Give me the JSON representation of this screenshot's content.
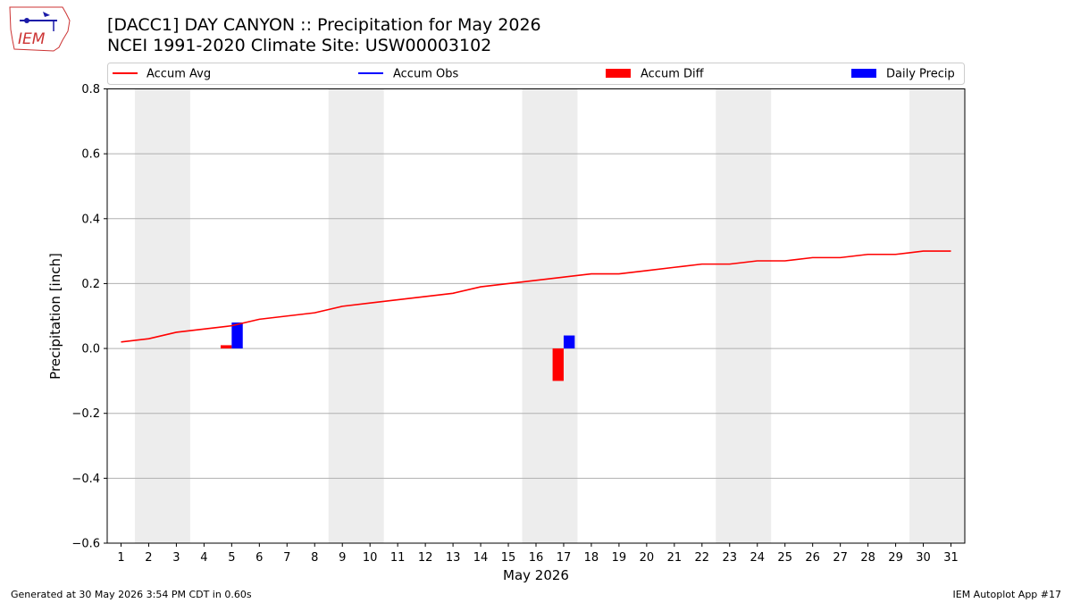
{
  "header": {
    "title_line1": "[DACC1] DAY CANYON :: Precipitation for May 2026",
    "title_line2": "NCEI 1991-2020 Climate Site: USW00003102",
    "logo_text": "IEM"
  },
  "footer": {
    "generated": "Generated at 30 May 2026 3:54 PM CDT in 0.60s",
    "app": "IEM Autoplot App #17"
  },
  "colors": {
    "avg": "#ff0000",
    "obs": "#0000ff",
    "diff": "#ff0000",
    "daily": "#0000ff",
    "weekend": "#ededed",
    "grid": "#b0b0b0"
  },
  "chart_data": {
    "type": "line",
    "xlabel": "May 2026",
    "ylabel": "Precipitation [inch]",
    "ylim": [
      -0.6,
      0.8
    ],
    "yticks": [
      -0.6,
      -0.4,
      -0.2,
      0.0,
      0.2,
      0.4,
      0.6,
      0.8
    ],
    "ytick_labels": [
      "−0.6",
      "−0.4",
      "−0.2",
      "0.0",
      "0.2",
      "0.4",
      "0.6",
      "0.8"
    ],
    "xlim": [
      0.5,
      31.5
    ],
    "days": [
      1,
      2,
      3,
      4,
      5,
      6,
      7,
      8,
      9,
      10,
      11,
      12,
      13,
      14,
      15,
      16,
      17,
      18,
      19,
      20,
      21,
      22,
      23,
      24,
      25,
      26,
      27,
      28,
      29,
      30,
      31
    ],
    "grid": "horizontal",
    "legend_placement": "top",
    "legend": [
      "Accum Avg",
      "Accum Obs",
      "Accum Diff",
      "Daily Precip"
    ],
    "weekend_shading": [
      [
        1.5,
        3.5
      ],
      [
        8.5,
        10.5
      ],
      [
        15.5,
        17.5
      ],
      [
        22.5,
        24.5
      ],
      [
        29.5,
        31.5
      ]
    ],
    "series": [
      {
        "name": "Accum Avg",
        "kind": "line",
        "x": [
          1,
          2,
          3,
          4,
          5,
          6,
          7,
          8,
          9,
          10,
          11,
          12,
          13,
          14,
          15,
          16,
          17,
          18,
          19,
          20,
          21,
          22,
          23,
          24,
          25,
          26,
          27,
          28,
          29,
          30,
          31
        ],
        "values": [
          0.02,
          0.03,
          0.05,
          0.06,
          0.07,
          0.09,
          0.1,
          0.11,
          0.13,
          0.14,
          0.15,
          0.16,
          0.17,
          0.19,
          0.2,
          0.21,
          0.22,
          0.23,
          0.23,
          0.24,
          0.25,
          0.26,
          0.26,
          0.27,
          0.27,
          0.28,
          0.28,
          0.29,
          0.29,
          0.3,
          0.3
        ]
      },
      {
        "name": "Accum Obs",
        "kind": "line",
        "x": [],
        "values": []
      },
      {
        "name": "Accum Diff",
        "kind": "bar",
        "x": [
          5,
          17
        ],
        "values": [
          0.01,
          -0.1
        ]
      },
      {
        "name": "Daily Precip",
        "kind": "bar",
        "x": [
          5,
          17
        ],
        "values": [
          0.08,
          0.04
        ]
      }
    ]
  }
}
